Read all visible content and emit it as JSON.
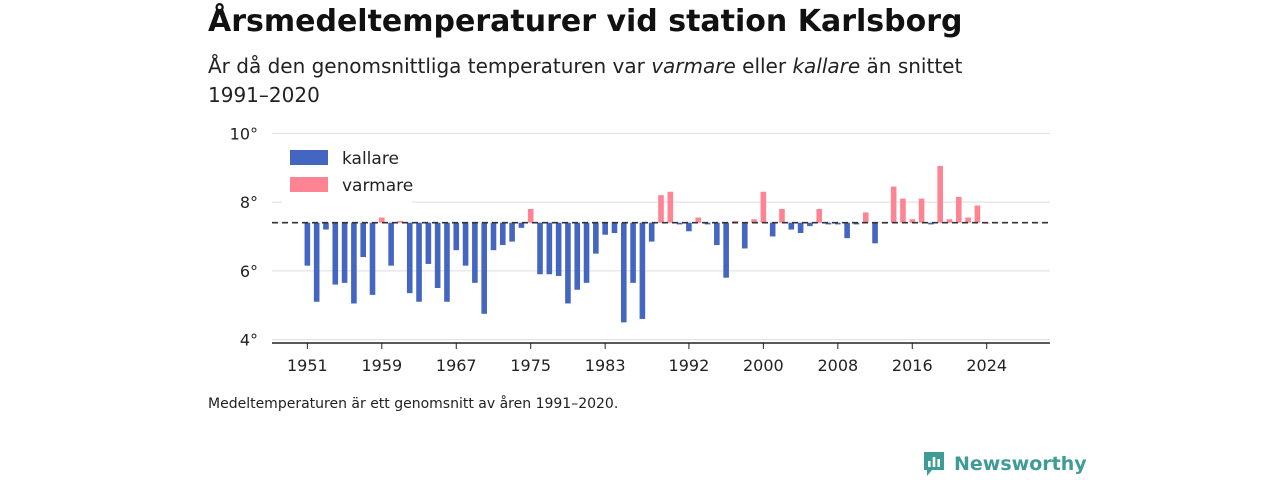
{
  "title": "Årsmedeltemperaturer vid station Karlsborg",
  "subtitle": {
    "part1": "År då den genomsnittliga temperaturen var ",
    "warm_word": "varmare",
    "part2": " eller ",
    "cold_word": "kallare",
    "part3": " än snittet 1991–2020"
  },
  "note": "Medeltemperaturen är ett genomsnitt av åren 1991–2020.",
  "brand": {
    "name": "Newsworthy",
    "icon": "newsworthy-logo-icon",
    "color": "#3f9b95"
  },
  "chart_data": {
    "type": "bar",
    "baseline": 7.4,
    "ylim": [
      3.9,
      10.3
    ],
    "yticks": [
      4,
      6,
      8,
      10
    ],
    "ytick_labels": [
      "4°",
      "6°",
      "8°",
      "10°"
    ],
    "xlim": [
      1947.2,
      2030.8
    ],
    "xticks": [
      1951,
      1959,
      1967,
      1975,
      1983,
      1992,
      2000,
      2008,
      2016,
      2024
    ],
    "xtick_labels": [
      "1951",
      "1959",
      "1967",
      "1975",
      "1983",
      "1992",
      "2000",
      "2008",
      "2016",
      "2024"
    ],
    "legend": [
      {
        "name": "kallare",
        "color": "#4466c0"
      },
      {
        "name": "varmare",
        "color": "#fe8494"
      }
    ],
    "legend_position": "top-left",
    "grid": true,
    "colors": {
      "colder": "#4466c0",
      "warmer": "#fe8494",
      "baseline": "#333333",
      "grid": "#dddddd"
    },
    "x": [
      1951,
      1952,
      1953,
      1954,
      1955,
      1956,
      1957,
      1958,
      1959,
      1960,
      1961,
      1962,
      1963,
      1964,
      1965,
      1966,
      1967,
      1968,
      1969,
      1970,
      1971,
      1972,
      1973,
      1974,
      1975,
      1976,
      1977,
      1978,
      1979,
      1980,
      1981,
      1982,
      1983,
      1984,
      1985,
      1986,
      1987,
      1988,
      1989,
      1990,
      1991,
      1992,
      1993,
      1994,
      1995,
      1996,
      1997,
      1998,
      1999,
      2000,
      2001,
      2002,
      2003,
      2004,
      2005,
      2006,
      2007,
      2008,
      2009,
      2010,
      2011,
      2012,
      2013,
      2014,
      2015,
      2016,
      2017,
      2018,
      2019,
      2020,
      2021,
      2022,
      2023,
      2024
    ],
    "values": [
      6.15,
      5.1,
      7.2,
      5.6,
      5.65,
      5.05,
      6.4,
      5.3,
      7.55,
      6.15,
      7.45,
      5.35,
      5.1,
      6.2,
      5.5,
      5.1,
      6.6,
      6.15,
      5.65,
      4.75,
      6.6,
      6.75,
      6.85,
      7.25,
      7.8,
      5.9,
      5.9,
      5.85,
      5.05,
      5.45,
      5.65,
      6.5,
      7.05,
      7.1,
      4.5,
      5.65,
      4.6,
      6.85,
      8.2,
      8.3,
      7.35,
      7.15,
      7.55,
      7.35,
      6.75,
      5.8,
      7.45,
      6.65,
      7.5,
      8.3,
      7.0,
      7.8,
      7.2,
      7.1,
      7.3,
      7.8,
      7.35,
      7.35,
      6.95,
      7.35,
      7.7,
      6.8,
      7.4,
      8.45,
      8.1,
      7.5,
      8.1,
      7.35,
      9.05,
      7.5,
      8.15,
      7.55,
      7.9,
      7.4
    ]
  }
}
